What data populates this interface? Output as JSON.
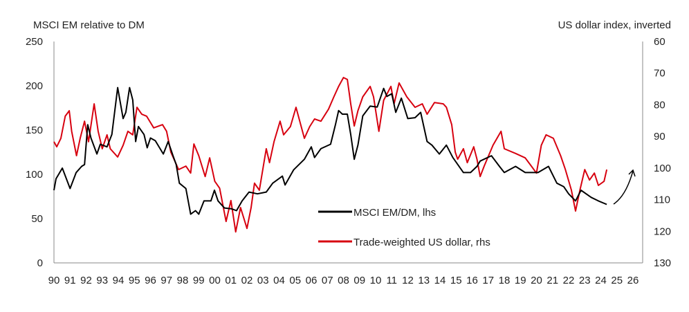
{
  "chart_data": {
    "type": "line",
    "title": "",
    "ylabel_left": "MSCI EM relative to DM",
    "ylabel_right": "US dollar index, inverted",
    "x_tick_labels": [
      "90",
      "91",
      "92",
      "93",
      "94",
      "95",
      "96",
      "97",
      "98",
      "99",
      "00",
      "01",
      "02",
      "03",
      "04",
      "05",
      "06",
      "07",
      "08",
      "09",
      "10",
      "11",
      "12",
      "13",
      "14",
      "15",
      "16",
      "17",
      "18",
      "19",
      "20",
      "21",
      "22",
      "23",
      "24",
      "25",
      "26"
    ],
    "xlim": [
      1990,
      2026
    ],
    "ylim_left": [
      0,
      250
    ],
    "y_ticks_left": [
      0,
      50,
      100,
      150,
      200,
      250
    ],
    "ylim_right": [
      60,
      130
    ],
    "y_right_inverted": true,
    "y_ticks_right": [
      60,
      70,
      80,
      90,
      100,
      110,
      120,
      130
    ],
    "grid": false,
    "legend_placement": "bottom-center",
    "colors": {
      "msci": "#000000",
      "usd": "#d7000f",
      "axis": "#888888"
    },
    "annotation": "arrow-up-right",
    "series": [
      {
        "name": "MSCI EM/DM, lhs",
        "axis": "left",
        "points": [
          [
            1990.0,
            82
          ],
          [
            1990.13,
            95
          ],
          [
            1990.52,
            107
          ],
          [
            1991.0,
            84
          ],
          [
            1991.38,
            102
          ],
          [
            1991.72,
            109
          ],
          [
            1991.9,
            111
          ],
          [
            1992.1,
            156
          ],
          [
            1992.3,
            141
          ],
          [
            1992.67,
            123
          ],
          [
            1992.88,
            134
          ],
          [
            1993.3,
            131
          ],
          [
            1993.6,
            145
          ],
          [
            1993.96,
            198
          ],
          [
            1994.3,
            163
          ],
          [
            1994.47,
            170
          ],
          [
            1994.7,
            198
          ],
          [
            1994.9,
            184
          ],
          [
            1995.08,
            137
          ],
          [
            1995.25,
            154
          ],
          [
            1995.6,
            145
          ],
          [
            1995.8,
            130
          ],
          [
            1996.0,
            141
          ],
          [
            1996.3,
            138
          ],
          [
            1996.8,
            123
          ],
          [
            1997.1,
            137
          ],
          [
            1997.4,
            121
          ],
          [
            1997.6,
            111
          ],
          [
            1997.8,
            90
          ],
          [
            1998.2,
            84
          ],
          [
            1998.5,
            55
          ],
          [
            1998.8,
            59
          ],
          [
            1999.0,
            55
          ],
          [
            1999.33,
            70
          ],
          [
            1999.76,
            70
          ],
          [
            1999.98,
            82
          ],
          [
            2000.2,
            70
          ],
          [
            2000.6,
            62
          ],
          [
            2001.05,
            61
          ],
          [
            2001.35,
            59
          ],
          [
            2001.7,
            70
          ],
          [
            2002.13,
            80
          ],
          [
            2002.65,
            78
          ],
          [
            2003.2,
            80
          ],
          [
            2003.6,
            90
          ],
          [
            2004.2,
            98
          ],
          [
            2004.37,
            88
          ],
          [
            2004.9,
            105
          ],
          [
            2005.57,
            117
          ],
          [
            2006.0,
            131
          ],
          [
            2006.2,
            119
          ],
          [
            2006.6,
            129
          ],
          [
            2007.2,
            134
          ],
          [
            2007.5,
            156
          ],
          [
            2007.7,
            172
          ],
          [
            2007.93,
            168
          ],
          [
            2008.24,
            168
          ],
          [
            2008.45,
            145
          ],
          [
            2008.67,
            117
          ],
          [
            2008.9,
            133
          ],
          [
            2009.2,
            166
          ],
          [
            2009.66,
            177
          ],
          [
            2010.1,
            176
          ],
          [
            2010.5,
            197
          ],
          [
            2010.7,
            188
          ],
          [
            2011.0,
            191
          ],
          [
            2011.25,
            170
          ],
          [
            2011.6,
            186
          ],
          [
            2012.0,
            163
          ],
          [
            2012.45,
            164
          ],
          [
            2012.8,
            170
          ],
          [
            2013.2,
            137
          ],
          [
            2013.5,
            133
          ],
          [
            2013.96,
            123
          ],
          [
            2014.4,
            133
          ],
          [
            2014.8,
            119
          ],
          [
            2015.46,
            102
          ],
          [
            2015.9,
            102
          ],
          [
            2016.3,
            109
          ],
          [
            2016.5,
            115
          ],
          [
            2017.2,
            121
          ],
          [
            2017.7,
            109
          ],
          [
            2018.0,
            102
          ],
          [
            2018.7,
            109
          ],
          [
            2019.3,
            102
          ],
          [
            2020.1,
            102
          ],
          [
            2020.75,
            109
          ],
          [
            2021.27,
            90
          ],
          [
            2021.7,
            86
          ],
          [
            2022.0,
            78
          ],
          [
            2022.43,
            70
          ],
          [
            2022.77,
            82
          ],
          [
            2023.4,
            74
          ],
          [
            2023.85,
            70
          ],
          [
            2024.37,
            66
          ]
        ]
      },
      {
        "name": "Trade-weighted US dollar, rhs",
        "axis": "right",
        "points": [
          [
            1990.0,
            91.7
          ],
          [
            1990.17,
            93.3
          ],
          [
            1990.43,
            90.6
          ],
          [
            1990.7,
            83.6
          ],
          [
            1990.95,
            81.9
          ],
          [
            1991.1,
            88.4
          ],
          [
            1991.4,
            96.1
          ],
          [
            1991.63,
            90.6
          ],
          [
            1991.9,
            85.2
          ],
          [
            1992.15,
            91.7
          ],
          [
            1992.5,
            79.7
          ],
          [
            1992.75,
            88.4
          ],
          [
            1993.0,
            93.9
          ],
          [
            1993.3,
            89.5
          ],
          [
            1993.5,
            93.9
          ],
          [
            1993.96,
            96.5
          ],
          [
            1994.3,
            92.8
          ],
          [
            1994.6,
            88.4
          ],
          [
            1994.9,
            89.5
          ],
          [
            1995.16,
            80.8
          ],
          [
            1995.46,
            83.0
          ],
          [
            1995.76,
            83.6
          ],
          [
            1996.2,
            87.3
          ],
          [
            1996.75,
            86.3
          ],
          [
            1997.0,
            88.4
          ],
          [
            1997.27,
            95.0
          ],
          [
            1997.75,
            100.5
          ],
          [
            1998.2,
            99.4
          ],
          [
            1998.5,
            101.6
          ],
          [
            1998.7,
            92.4
          ],
          [
            1999.0,
            96.1
          ],
          [
            1999.4,
            102.7
          ],
          [
            1999.68,
            96.8
          ],
          [
            2000.0,
            104.2
          ],
          [
            2000.3,
            106.4
          ],
          [
            2000.7,
            116.9
          ],
          [
            2001.0,
            110.3
          ],
          [
            2001.3,
            120.2
          ],
          [
            2001.6,
            112.5
          ],
          [
            2002.0,
            119.1
          ],
          [
            2002.26,
            112.5
          ],
          [
            2002.47,
            104.8
          ],
          [
            2002.77,
            107.0
          ],
          [
            2003.2,
            93.9
          ],
          [
            2003.4,
            98.3
          ],
          [
            2003.68,
            91.7
          ],
          [
            2004.06,
            85.2
          ],
          [
            2004.28,
            89.5
          ],
          [
            2004.7,
            86.9
          ],
          [
            2005.05,
            80.8
          ],
          [
            2005.57,
            90.6
          ],
          [
            2005.9,
            86.9
          ],
          [
            2006.2,
            84.5
          ],
          [
            2006.6,
            85.2
          ],
          [
            2007.07,
            81.4
          ],
          [
            2007.4,
            77.5
          ],
          [
            2007.7,
            74.2
          ],
          [
            2008.0,
            71.4
          ],
          [
            2008.24,
            72.0
          ],
          [
            2008.45,
            79.7
          ],
          [
            2008.67,
            86.7
          ],
          [
            2008.9,
            81.9
          ],
          [
            2009.2,
            77.5
          ],
          [
            2009.66,
            74.2
          ],
          [
            2009.87,
            77.5
          ],
          [
            2010.2,
            88.4
          ],
          [
            2010.5,
            78.6
          ],
          [
            2010.95,
            74.2
          ],
          [
            2011.15,
            79.7
          ],
          [
            2011.46,
            73.1
          ],
          [
            2011.94,
            77.5
          ],
          [
            2012.45,
            80.8
          ],
          [
            2012.9,
            79.7
          ],
          [
            2013.2,
            83.0
          ],
          [
            2013.66,
            79.3
          ],
          [
            2014.2,
            79.7
          ],
          [
            2014.4,
            80.8
          ],
          [
            2014.73,
            86.3
          ],
          [
            2014.95,
            95.0
          ],
          [
            2015.1,
            97.2
          ],
          [
            2015.46,
            93.9
          ],
          [
            2015.7,
            98.3
          ],
          [
            2016.1,
            93.3
          ],
          [
            2016.3,
            97.2
          ],
          [
            2016.5,
            102.7
          ],
          [
            2016.75,
            99.4
          ],
          [
            2017.3,
            92.8
          ],
          [
            2017.8,
            88.4
          ],
          [
            2018.0,
            93.9
          ],
          [
            2018.7,
            95.4
          ],
          [
            2019.3,
            96.8
          ],
          [
            2019.68,
            99.4
          ],
          [
            2020.0,
            101.6
          ],
          [
            2020.3,
            92.8
          ],
          [
            2020.6,
            89.5
          ],
          [
            2021.05,
            90.6
          ],
          [
            2021.5,
            96.1
          ],
          [
            2021.8,
            100.5
          ],
          [
            2022.17,
            107.0
          ],
          [
            2022.43,
            113.6
          ],
          [
            2022.7,
            107.0
          ],
          [
            2023.0,
            100.5
          ],
          [
            2023.3,
            103.8
          ],
          [
            2023.6,
            101.6
          ],
          [
            2023.85,
            105.5
          ],
          [
            2024.2,
            104.2
          ],
          [
            2024.37,
            100.5
          ]
        ]
      }
    ]
  }
}
